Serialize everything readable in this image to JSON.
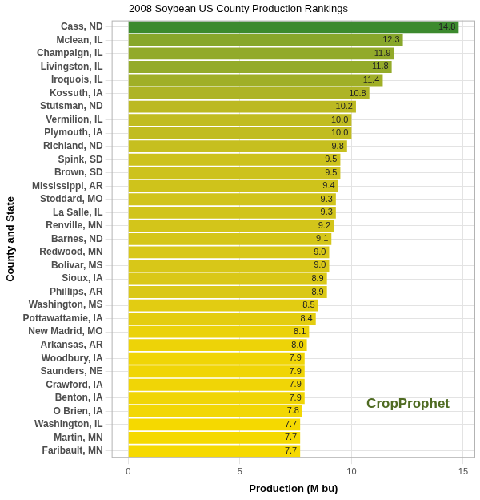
{
  "chart_data": {
    "type": "bar",
    "orientation": "horizontal",
    "title": "2008 Soybean US County Production Rankings",
    "x_label": "Production (M bu)",
    "y_label": "County and State",
    "annotations": [
      "CropProphet"
    ],
    "categories": [
      "Cass, ND",
      "Mclean, IL",
      "Champaign, IL",
      "Livingston, IL",
      "Iroquois, IL",
      "Kossuth, IA",
      "Stutsman, ND",
      "Vermilion, IL",
      "Plymouth, IA",
      "Richland, ND",
      "Spink, SD",
      "Brown, SD",
      "Mississippi, AR",
      "Stoddard, MO",
      "La Salle, IL",
      "Renville, MN",
      "Barnes, ND",
      "Redwood, MN",
      "Bolivar, MS",
      "Sioux, IA",
      "Phillips, AR",
      "Washington, MS",
      "Pottawattamie, IA",
      "New Madrid, MO",
      "Arkansas, AR",
      "Woodbury, IA",
      "Saunders, NE",
      "Crawford, IA",
      "Benton, IA",
      "O Brien, IA",
      "Washington, IL",
      "Martin, MN",
      "Faribault, MN"
    ],
    "values": [
      14.8,
      12.3,
      11.9,
      11.8,
      11.4,
      10.8,
      10.2,
      10.0,
      10.0,
      9.8,
      9.5,
      9.5,
      9.4,
      9.3,
      9.3,
      9.2,
      9.1,
      9.0,
      9.0,
      8.9,
      8.9,
      8.5,
      8.4,
      8.1,
      8.0,
      7.9,
      7.9,
      7.9,
      7.9,
      7.8,
      7.7,
      7.7,
      7.7
    ],
    "value_labels": [
      "14.8",
      "12.3",
      "11.9",
      "11.8",
      "11.4",
      "10.8",
      "10.2",
      "10.0",
      "10.0",
      "9.8",
      "9.5",
      "9.5",
      "9.4",
      "9.3",
      "9.3",
      "9.2",
      "9.1",
      "9.0",
      "9.0",
      "8.9",
      "8.9",
      "8.5",
      "8.4",
      "8.1",
      "8.0",
      "7.9",
      "7.9",
      "7.9",
      "7.9",
      "7.8",
      "7.7",
      "7.7",
      "7.7"
    ],
    "colors": [
      "#3c8a2e",
      "#88a72b",
      "#92aa2a",
      "#94ab2a",
      "#a0af27",
      "#aeb425",
      "#bcb922",
      "#c1bc21",
      "#c1bc21",
      "#c6bf1f",
      "#cdc21c",
      "#cdc21c",
      "#cfc31b",
      "#d1c41b",
      "#d1c41b",
      "#d3c51a",
      "#d5c619",
      "#d8c718",
      "#d8c718",
      "#dac817",
      "#dac817",
      "#e2cc12",
      "#e4cd10",
      "#ebd20a",
      "#edd308",
      "#f0d506",
      "#f0d506",
      "#f0d506",
      "#f0d506",
      "#f2d704",
      "#f5d900",
      "#f5d900",
      "#f5d900"
    ],
    "xlim": [
      -0.74,
      15.54
    ],
    "xticks": [
      0,
      5,
      10,
      15
    ],
    "grid": true,
    "data_labels": true
  }
}
